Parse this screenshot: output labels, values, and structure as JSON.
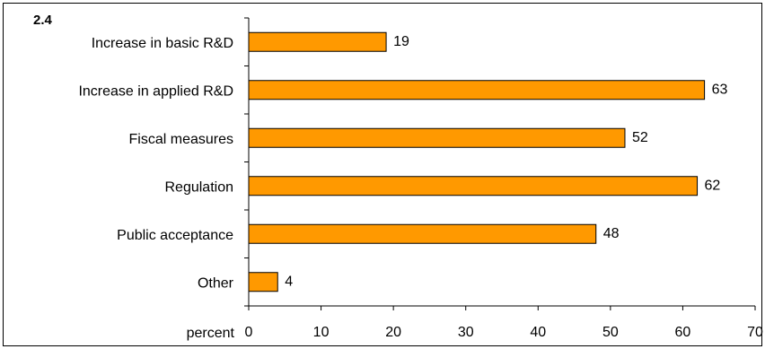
{
  "figure_label": "2.4",
  "chart_data": {
    "type": "bar",
    "orientation": "horizontal",
    "categories": [
      "Increase in basic R&D",
      "Increase in applied R&D",
      "Fiscal measures",
      "Regulation",
      "Public acceptance",
      "Other"
    ],
    "values": [
      19,
      63,
      52,
      62,
      48,
      4
    ],
    "data_labels": [
      "19",
      "63",
      "52",
      "62",
      "48",
      "4"
    ],
    "xlabel": "percent",
    "xlim": [
      0,
      70
    ],
    "xticks": [
      0,
      10,
      20,
      30,
      40,
      50,
      60,
      70
    ],
    "xtick_labels": [
      "0",
      "10",
      "20",
      "30",
      "40",
      "50",
      "60",
      "70"
    ],
    "bar_color": "#FF9900",
    "grid": false,
    "legend": "none"
  }
}
